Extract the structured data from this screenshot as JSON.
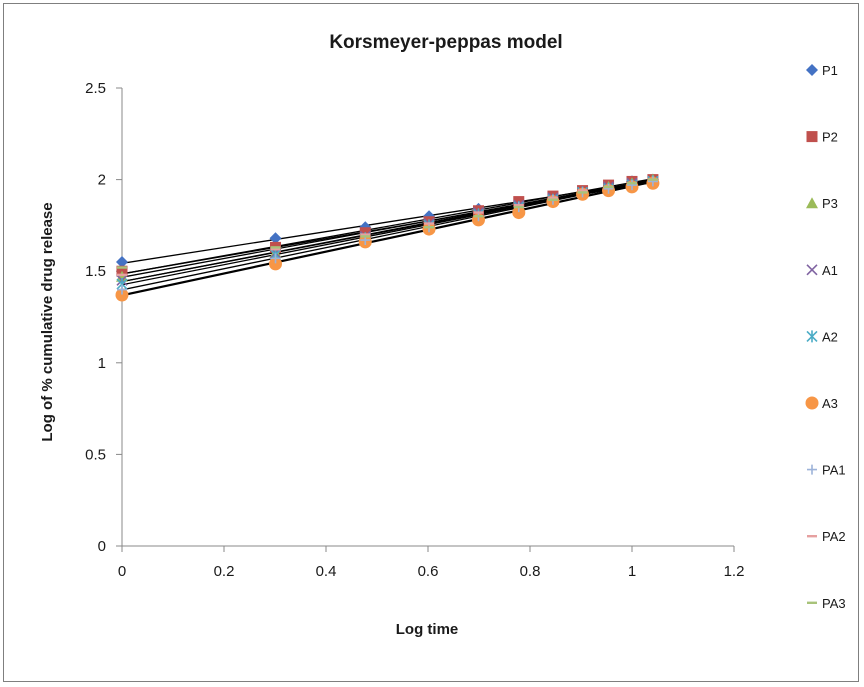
{
  "chart_data": {
    "type": "scatter",
    "title": "Korsmeyer-peppas model",
    "xlabel": "Log time",
    "ylabel": "Log  of  % cumulative drug release",
    "xlim": [
      0,
      1.2
    ],
    "ylim": [
      0,
      2.5
    ],
    "xticks": [
      "0",
      "0.2",
      "0.4",
      "0.6",
      "0.8",
      "1",
      "1.2"
    ],
    "yticks": [
      "0",
      "0.5",
      "1",
      "1.5",
      "2",
      "2.5"
    ],
    "legend_position": "right",
    "grid": false,
    "trendlines": true,
    "x": [
      0,
      0.301,
      0.477,
      0.602,
      0.699,
      0.778,
      0.845,
      0.903,
      0.954,
      1.0,
      1.041
    ],
    "series": [
      {
        "name": "P1",
        "marker": "diamond",
        "color": "#4472c4",
        "values": [
          1.55,
          1.68,
          1.74,
          1.8,
          1.84,
          1.87,
          1.9,
          1.93,
          1.96,
          1.99,
          2.0
        ]
      },
      {
        "name": "P2",
        "marker": "square",
        "color": "#c0504d",
        "values": [
          1.5,
          1.63,
          1.71,
          1.77,
          1.83,
          1.88,
          1.91,
          1.94,
          1.97,
          1.99,
          2.0
        ]
      },
      {
        "name": "P3",
        "marker": "triangle",
        "color": "#9bbb59",
        "values": [
          1.47,
          1.6,
          1.67,
          1.74,
          1.8,
          1.85,
          1.89,
          1.93,
          1.96,
          1.98,
          2.0
        ]
      },
      {
        "name": "A1",
        "marker": "x",
        "color": "#8064a2",
        "values": [
          1.45,
          1.6,
          1.69,
          1.76,
          1.82,
          1.86,
          1.9,
          1.93,
          1.96,
          1.98,
          1.99
        ]
      },
      {
        "name": "A2",
        "marker": "star",
        "color": "#4bacc6",
        "values": [
          1.43,
          1.59,
          1.68,
          1.75,
          1.81,
          1.85,
          1.89,
          1.93,
          1.95,
          1.97,
          1.99
        ]
      },
      {
        "name": "A3",
        "marker": "circle",
        "color": "#f79646",
        "values": [
          1.37,
          1.54,
          1.66,
          1.73,
          1.78,
          1.82,
          1.88,
          1.92,
          1.94,
          1.96,
          1.98
        ]
      },
      {
        "name": "PA1",
        "marker": "plus",
        "color": "#9db3d9",
        "values": [
          1.4,
          1.57,
          1.67,
          1.74,
          1.8,
          1.85,
          1.89,
          1.93,
          1.95,
          1.97,
          1.99
        ]
      },
      {
        "name": "PA2",
        "marker": "dash",
        "color": "#e6a0a0",
        "values": [
          1.48,
          1.62,
          1.7,
          1.76,
          1.82,
          1.86,
          1.9,
          1.94,
          1.96,
          1.98,
          2.0
        ]
      },
      {
        "name": "PA3",
        "marker": "dash",
        "color": "#a8c37a",
        "values": [
          1.52,
          1.63,
          1.69,
          1.74,
          1.8,
          1.85,
          1.89,
          1.93,
          1.96,
          1.98,
          2.0
        ]
      }
    ]
  }
}
